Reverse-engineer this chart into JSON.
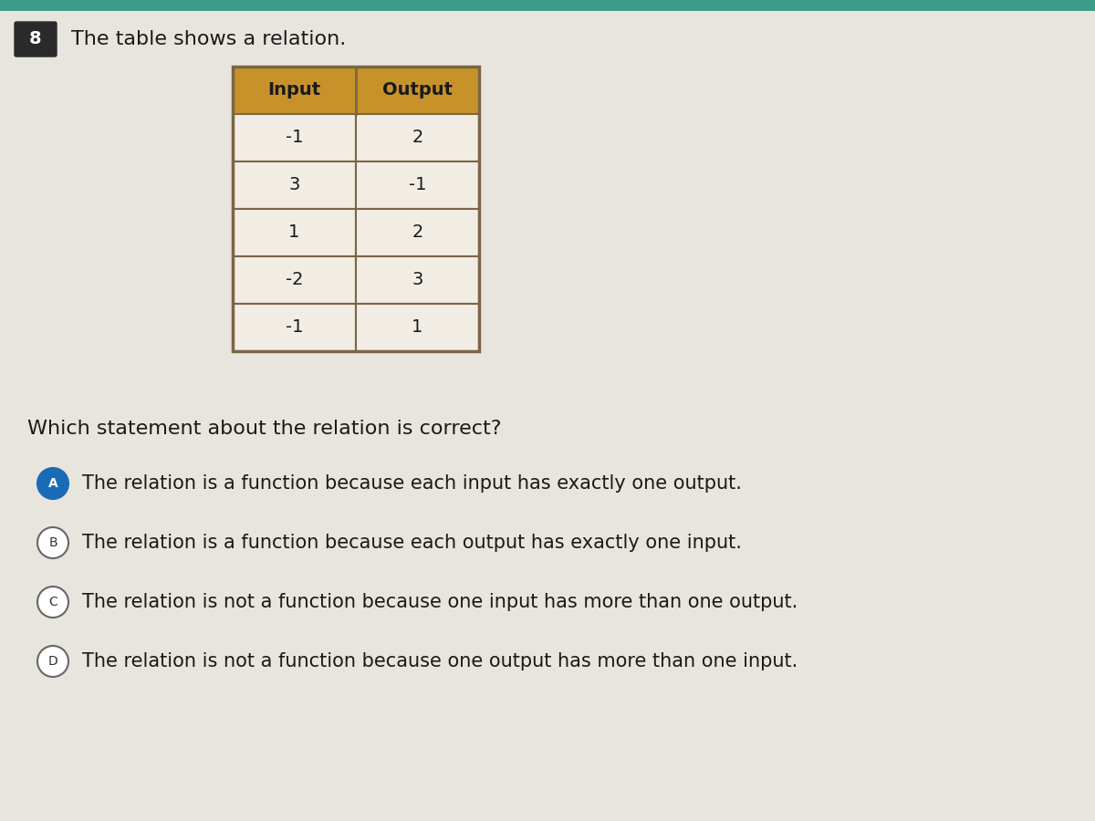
{
  "question_number": "8",
  "question_text": "The table shows a relation.",
  "table_headers": [
    "Input",
    "Output"
  ],
  "table_data": [
    [
      "-1",
      "2"
    ],
    [
      "3",
      "-1"
    ],
    [
      "1",
      "2"
    ],
    [
      "-2",
      "3"
    ],
    [
      "-1",
      "1"
    ]
  ],
  "question2": "Which statement about the relation is correct?",
  "options": [
    {
      "label": "A",
      "text": "The relation is a function because each input has exactly one output.",
      "selected": true
    },
    {
      "label": "B",
      "text": "The relation is a function because each output has exactly one input.",
      "selected": false
    },
    {
      "label": "C",
      "text": "The relation is not a function because one input has more than one output.",
      "selected": false
    },
    {
      "label": "D",
      "text": "The relation is not a function because one output has more than one input.",
      "selected": false
    }
  ],
  "bg_color": "#e8e5de",
  "top_bar_color": "#3d9b8a",
  "question_num_bg": "#2a2a2a",
  "table_header_bg": "#c8922a",
  "table_border_color": "#7a6545",
  "table_cell_bg": "#f2ede4",
  "selected_circle_color": "#1a6bb5",
  "unselected_circle_color": "#ffffff",
  "circle_border_color": "#666666",
  "text_color": "#1a1a1a"
}
